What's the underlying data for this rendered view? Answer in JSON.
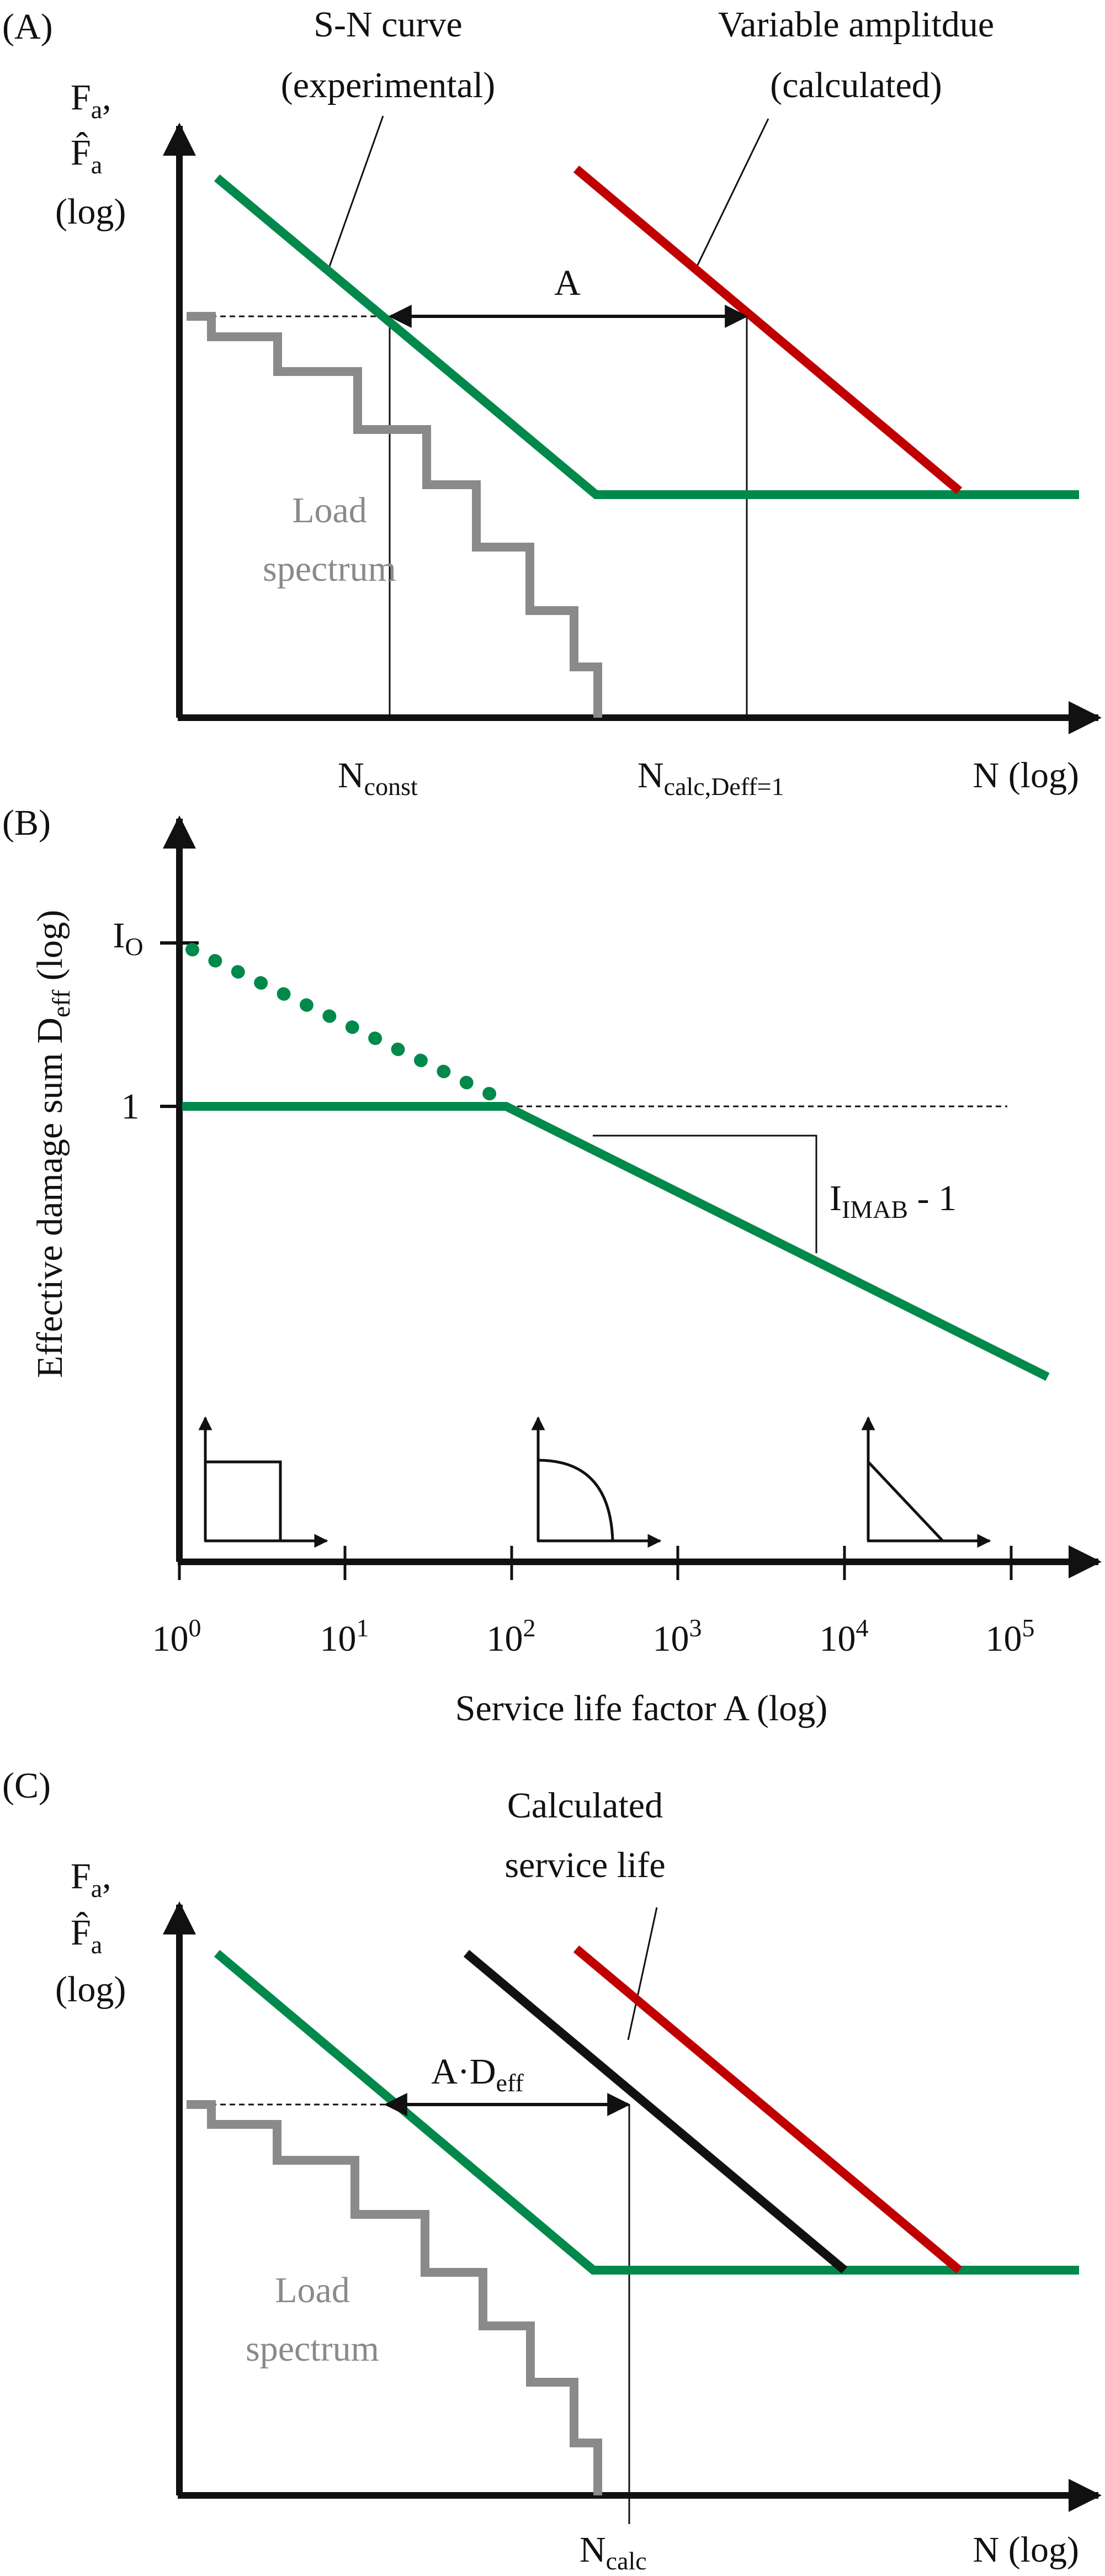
{
  "colors": {
    "green": "#00894b",
    "red": "#c00000",
    "grey": "#8a8a8a",
    "black": "#111111"
  },
  "panelA": {
    "panel_label": "(A)",
    "y_label_line1_base": "F",
    "y_label_line1_sub": "a",
    "y_label_line1_suffix": ",",
    "y_label_line2_base": "F̂",
    "y_label_line2_sub": "a",
    "y_label_line3": "(log)",
    "sn_label_line1": "S-N curve",
    "sn_label_line2": "(experimental)",
    "va_label_line1": "Variable amplitdue",
    "va_label_line2": "(calculated)",
    "shift_label": "A",
    "load_label_line1": "Load",
    "load_label_line2": "spectrum",
    "x_tick1_base": "N",
    "x_tick1_sub": "const",
    "x_tick2_base": "N",
    "x_tick2_sub": "calc,Deff=1",
    "x_axis_label": "N (log)"
  },
  "panelB": {
    "panel_label": "(B)",
    "y_axis_label_base": "Effective damage sum D",
    "y_axis_label_sub": "eff",
    "y_axis_label_suffix": " (log)",
    "y_tick_io_base": "I",
    "y_tick_io_sub": "O",
    "y_tick_one": "1",
    "slope_label_base": "I",
    "slope_label_sub": "IMAB",
    "slope_label_suffix": " - 1",
    "x_ticks": [
      {
        "base": "10",
        "exp": "0"
      },
      {
        "base": "10",
        "exp": "1"
      },
      {
        "base": "10",
        "exp": "2"
      },
      {
        "base": "10",
        "exp": "3"
      },
      {
        "base": "10",
        "exp": "4"
      },
      {
        "base": "10",
        "exp": "5"
      }
    ],
    "x_axis_label": "Service life factor A (log)"
  },
  "panelC": {
    "panel_label": "(C)",
    "y_label_line1_base": "F",
    "y_label_line1_sub": "a",
    "y_label_line1_suffix": ",",
    "y_label_line2_base": "F̂",
    "y_label_line2_sub": "a",
    "y_label_line3": "(log)",
    "calc_label_line1": "Calculated",
    "calc_label_line2": "service life",
    "shift_label_base": "A·D",
    "shift_label_sub": "eff",
    "load_label_line1": "Load",
    "load_label_line2": "spectrum",
    "x_tick_base": "N",
    "x_tick_sub": "calc",
    "x_axis_label": "N (log)"
  }
}
